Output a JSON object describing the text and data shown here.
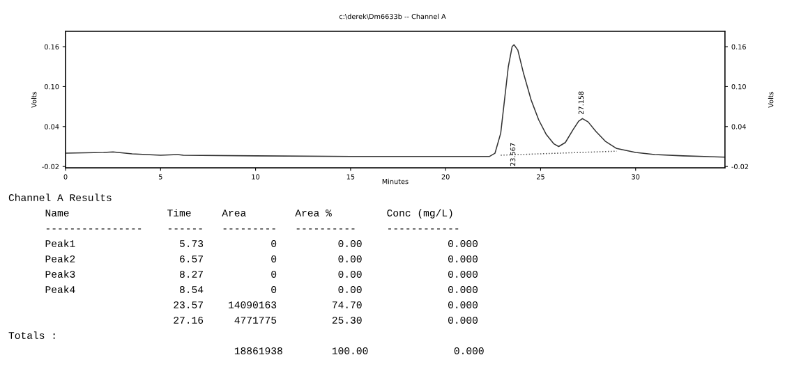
{
  "chart_data": {
    "type": "line",
    "title": "c:\\derek\\Dm6633b -- Channel A",
    "xlabel": "Minutes",
    "ylabel": "Volts",
    "y2label": "Volts",
    "xlim": [
      0,
      34.7
    ],
    "ylim": [
      -0.022,
      0.183
    ],
    "y2lim": [
      -0.022,
      0.183
    ],
    "xticks": [
      0,
      5,
      10,
      15,
      20,
      25,
      30
    ],
    "yticks": [
      {
        "value": 0.16,
        "label": "0.16"
      },
      {
        "value": 0.1,
        "label": "0.10"
      },
      {
        "value": 0.04,
        "label": "0.04"
      },
      {
        "value": -0.02,
        "label": "-0.02"
      }
    ],
    "y2ticks": [
      {
        "value": 0.16,
        "label": "0.16"
      },
      {
        "value": 0.1,
        "label": "0.10"
      },
      {
        "value": 0.04,
        "label": "0.04"
      },
      {
        "value": -0.02,
        "label": "-0.02"
      }
    ],
    "grid": false,
    "series": [
      {
        "color": "#333333",
        "line_style": "solid",
        "x": [
          0,
          2,
          2.5,
          3.5,
          5,
          5.9,
          6.2,
          10,
          15,
          20,
          22.3,
          22.6,
          22.9,
          23.1,
          23.3,
          23.5,
          23.6,
          23.8,
          24.1,
          24.5,
          24.9,
          25.3,
          25.7,
          25.95,
          26.3,
          26.7,
          27.0,
          27.2,
          27.5,
          27.9,
          28.4,
          29.0,
          30,
          31,
          32.5,
          34.7
        ],
        "values": [
          0.0,
          0.001,
          0.002,
          -0.001,
          -0.003,
          -0.002,
          -0.003,
          -0.004,
          -0.005,
          -0.005,
          -0.005,
          0.0,
          0.03,
          0.08,
          0.13,
          0.16,
          0.163,
          0.155,
          0.12,
          0.08,
          0.05,
          0.028,
          0.014,
          0.01,
          0.016,
          0.035,
          0.048,
          0.052,
          0.047,
          0.033,
          0.018,
          0.007,
          0.001,
          -0.002,
          -0.004,
          -0.006
        ]
      },
      {
        "color": "#555555",
        "line_style": "dotted",
        "x": [
          22.9,
          29.0
        ],
        "values": [
          -0.003,
          0.003
        ]
      }
    ],
    "annotations": [
      {
        "text": "23.567",
        "x": 23.567,
        "y": -0.002
      },
      {
        "text": "27.158",
        "x": 27.158,
        "y": 0.052
      },
      "Channel A Results",
      "      Name                Time     Area        Area %         Conc (mg/L)",
      "      ----------------    ------   ---------   ----------     ------------",
      "      Peak1                 5.73           0          0.00              0.000",
      "      Peak2                 6.57           0          0.00              0.000",
      "      Peak3                 8.27           0          0.00              0.000",
      "      Peak4                 8.54           0          0.00              0.000",
      "                           23.57    14090163         74.70              0.000",
      "                           27.16     4771775         25.30              0.000",
      "Totals :",
      "                                     18861938        100.00              0.000"
    ]
  }
}
